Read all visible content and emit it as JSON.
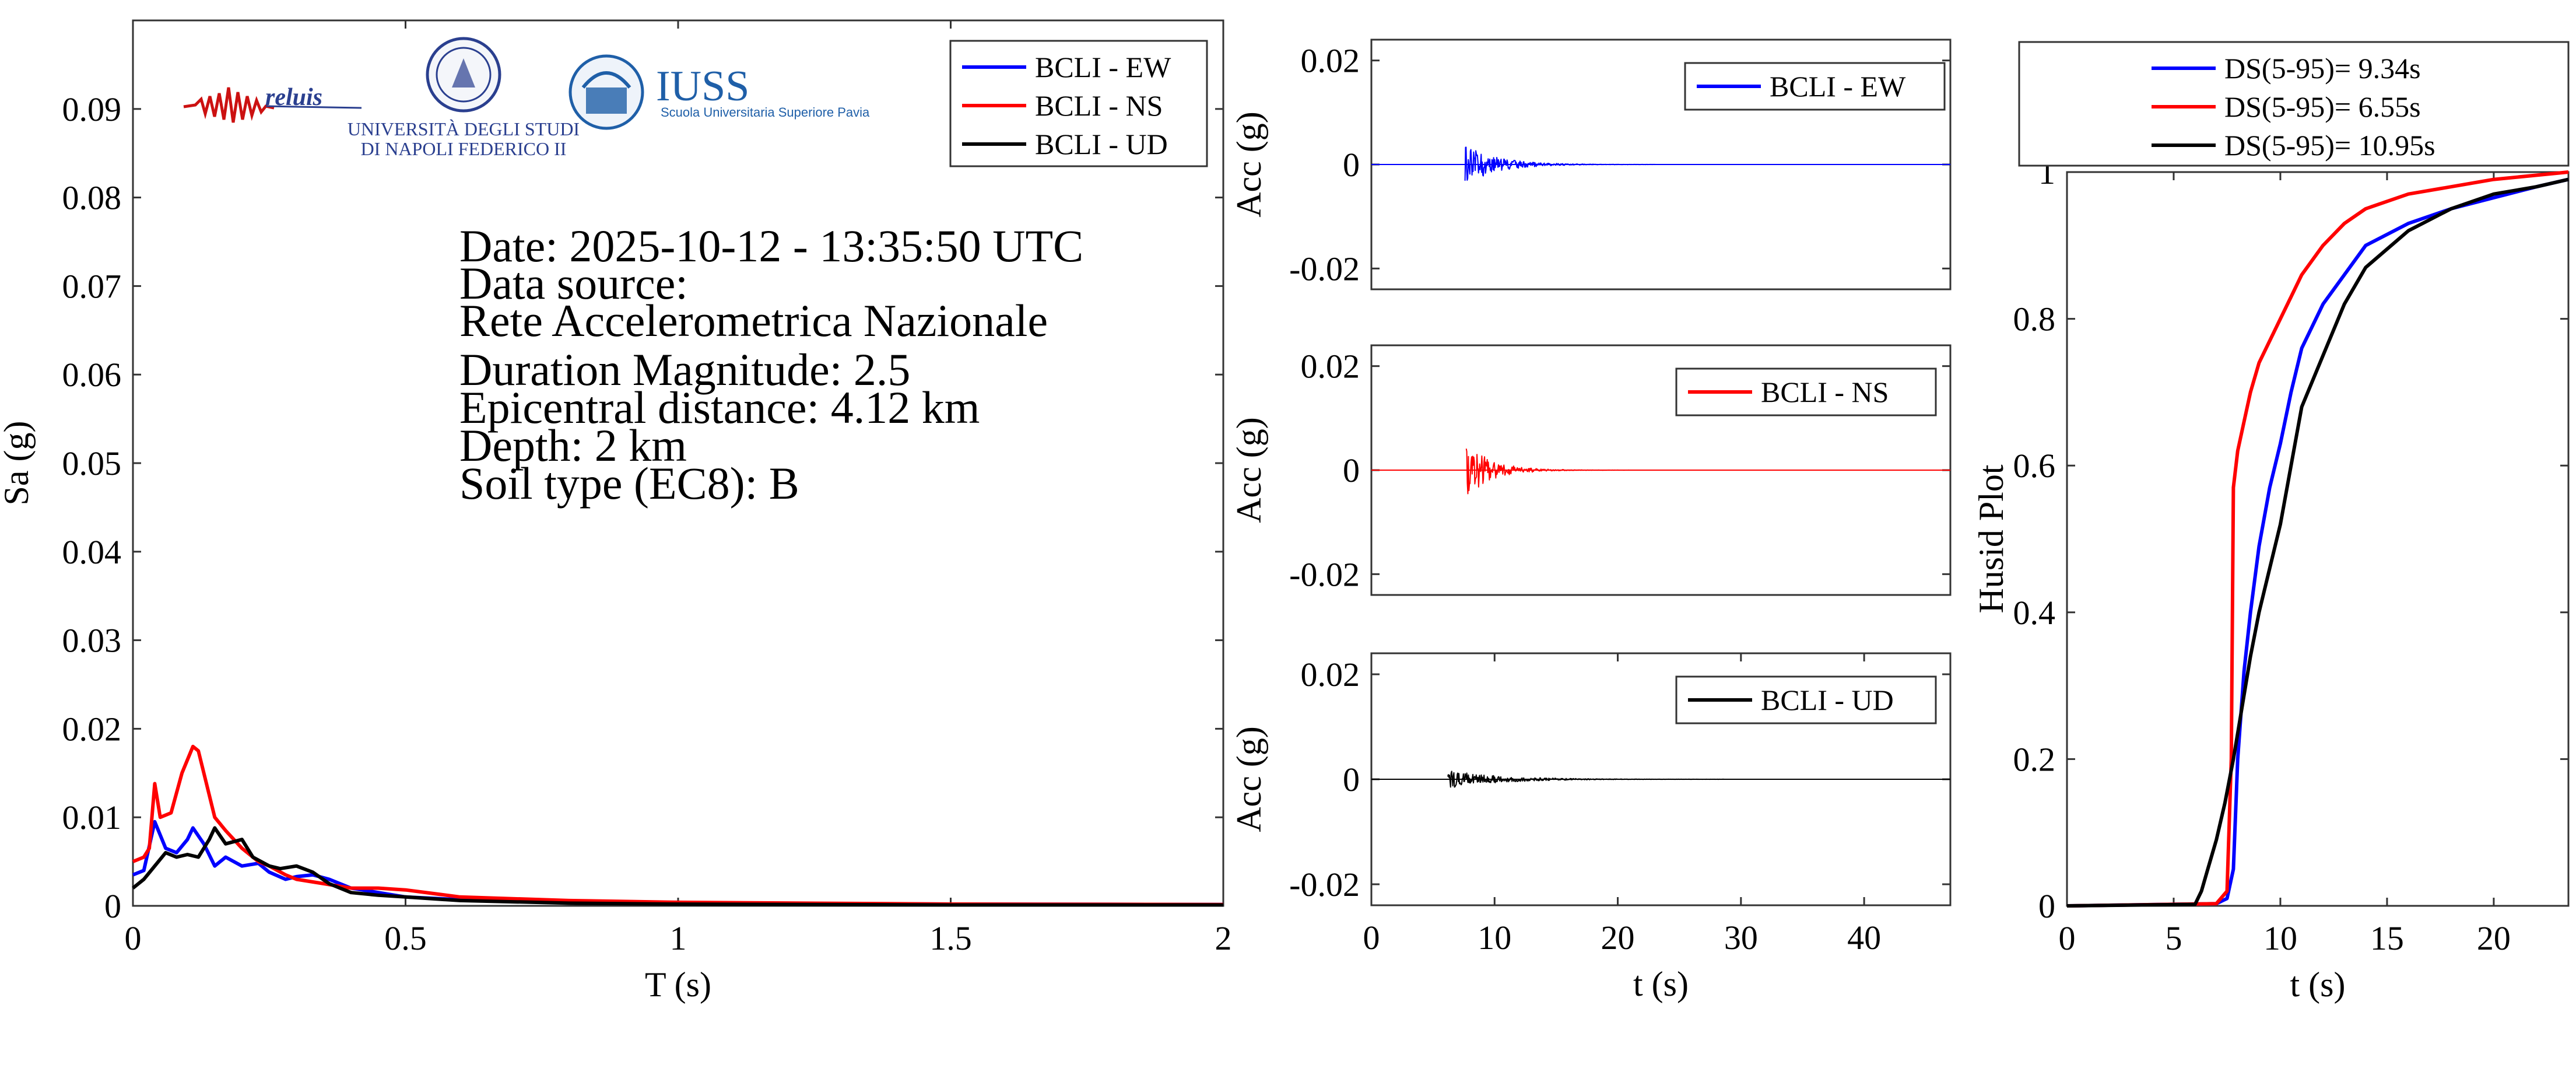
{
  "colors": {
    "ew": "#0000ff",
    "ns": "#ff0000",
    "ud": "#000000"
  },
  "logos": {
    "reluis": "reluis",
    "unina_line1": "UNIVERSITÀ DEGLI STUDI",
    "unina_line2": "DI NAPOLI FEDERICO II",
    "iuss": "IUSS",
    "iuss_sub": "Scuola Universitaria Superiore Pavia"
  },
  "info": {
    "date": "Date: 2025-10-12 - 13:35:50 UTC",
    "source_label": "Data source:",
    "source": "Rete Accelerometrica Nazionale",
    "magnitude": "Duration Magnitude: 2.5",
    "distance": "Epicentral distance: 4.12 km",
    "depth": "Depth: 2 km",
    "soil": "Soil type (EC8): B"
  },
  "chart_data": [
    {
      "id": "spectrum",
      "type": "line",
      "xlabel": "T (s)",
      "ylabel": "Sa (g)",
      "xlim": [
        0,
        2
      ],
      "ylim": [
        0,
        0.1
      ],
      "xticks": [
        0,
        0.5,
        1,
        1.5,
        2
      ],
      "xticklabels": [
        "0",
        "0.5",
        "1",
        "1.5",
        "2"
      ],
      "yticks": [
        0,
        0.01,
        0.02,
        0.03,
        0.04,
        0.05,
        0.06,
        0.07,
        0.08,
        0.09
      ],
      "yticklabels": [
        "0",
        "0.01",
        "0.02",
        "0.03",
        "0.04",
        "0.05",
        "0.06",
        "0.07",
        "0.08",
        "0.09"
      ],
      "legend": "top-right",
      "series": [
        {
          "name": "BCLI - EW",
          "color": "#0000ff",
          "x": [
            0,
            0.02,
            0.04,
            0.05,
            0.06,
            0.08,
            0.1,
            0.11,
            0.13,
            0.15,
            0.17,
            0.2,
            0.23,
            0.25,
            0.28,
            0.3,
            0.33,
            0.36,
            0.4,
            0.45,
            0.5,
            0.6,
            0.8,
            1.0,
            1.5,
            2.0
          ],
          "y": [
            0.0035,
            0.004,
            0.0095,
            0.008,
            0.0065,
            0.006,
            0.0075,
            0.0088,
            0.007,
            0.0045,
            0.0055,
            0.0045,
            0.0048,
            0.0038,
            0.003,
            0.0033,
            0.0035,
            0.003,
            0.002,
            0.0015,
            0.001,
            0.0007,
            0.0004,
            0.0003,
            0.0002,
            0.00015
          ]
        },
        {
          "name": "BCLI - NS",
          "color": "#ff0000",
          "x": [
            0,
            0.02,
            0.03,
            0.04,
            0.05,
            0.07,
            0.09,
            0.11,
            0.12,
            0.13,
            0.15,
            0.17,
            0.2,
            0.23,
            0.25,
            0.28,
            0.3,
            0.35,
            0.4,
            0.45,
            0.5,
            0.6,
            0.8,
            1.0,
            1.5,
            2.0
          ],
          "y": [
            0.005,
            0.0055,
            0.0065,
            0.0138,
            0.01,
            0.0105,
            0.015,
            0.018,
            0.0175,
            0.015,
            0.01,
            0.0085,
            0.0065,
            0.005,
            0.0045,
            0.0035,
            0.003,
            0.0025,
            0.002,
            0.002,
            0.0018,
            0.001,
            0.0006,
            0.0004,
            0.0002,
            0.00015
          ]
        },
        {
          "name": "BCLI - UD",
          "color": "#000000",
          "x": [
            0,
            0.02,
            0.04,
            0.06,
            0.08,
            0.1,
            0.12,
            0.14,
            0.15,
            0.17,
            0.2,
            0.22,
            0.25,
            0.27,
            0.3,
            0.33,
            0.36,
            0.4,
            0.45,
            0.5,
            0.6,
            0.8,
            1.0,
            1.5,
            2.0
          ],
          "y": [
            0.002,
            0.003,
            0.0045,
            0.006,
            0.0055,
            0.0058,
            0.0055,
            0.0075,
            0.0088,
            0.007,
            0.0075,
            0.0055,
            0.0045,
            0.0042,
            0.0045,
            0.0038,
            0.0025,
            0.0015,
            0.0012,
            0.001,
            0.0006,
            0.0003,
            0.0002,
            0.0001,
            0.0001
          ]
        }
      ]
    },
    {
      "id": "acc_ew",
      "type": "line",
      "xlabel": "",
      "ylabel": "Acc (g)",
      "xlim": [
        0,
        47
      ],
      "ylim": [
        -0.024,
        0.024
      ],
      "yticks": [
        -0.02,
        0,
        0.02
      ],
      "yticklabels": [
        "-0.02",
        "0",
        "0.02"
      ],
      "legend": "top-right",
      "series": [
        {
          "name": "BCLI - EW",
          "color": "#0000ff",
          "onset": 7.6,
          "peak": 0.004,
          "decay": 2.5,
          "end": 47
        }
      ]
    },
    {
      "id": "acc_ns",
      "type": "line",
      "xlabel": "",
      "ylabel": "Acc (g)",
      "xlim": [
        0,
        47
      ],
      "ylim": [
        -0.024,
        0.024
      ],
      "yticks": [
        -0.02,
        0,
        0.02
      ],
      "yticklabels": [
        "-0.02",
        "0",
        "0.02"
      ],
      "legend": "top-right",
      "series": [
        {
          "name": "BCLI - NS",
          "color": "#ff0000",
          "onset": 7.7,
          "peak": 0.0055,
          "decay": 2.0,
          "end": 47
        }
      ]
    },
    {
      "id": "acc_ud",
      "type": "line",
      "xlabel": "t (s)",
      "ylabel": "Acc (g)",
      "xlim": [
        0,
        47
      ],
      "ylim": [
        -0.024,
        0.024
      ],
      "xticks": [
        0,
        10,
        20,
        30,
        40
      ],
      "xticklabels": [
        "0",
        "10",
        "20",
        "30",
        "40"
      ],
      "yticks": [
        -0.02,
        0,
        0.02
      ],
      "yticklabels": [
        "-0.02",
        "0",
        "0.02"
      ],
      "legend": "top-right",
      "series": [
        {
          "name": "BCLI - UD",
          "color": "#000000",
          "onset": 6.2,
          "peak": 0.0018,
          "decay": 4.0,
          "end": 47
        }
      ]
    },
    {
      "id": "husid",
      "type": "line",
      "xlabel": "t (s)",
      "ylabel": "Husid Plot",
      "xlim": [
        0,
        23.5
      ],
      "ylim": [
        0,
        1
      ],
      "xticks": [
        0,
        5,
        10,
        15,
        20
      ],
      "xticklabels": [
        "0",
        "5",
        "10",
        "15",
        "20"
      ],
      "yticks": [
        0,
        0.2,
        0.4,
        0.6,
        0.8,
        1
      ],
      "yticklabels": [
        "0",
        "0.2",
        "0.4",
        "0.6",
        "0.8",
        "1"
      ],
      "legend": "top (outside)",
      "series": [
        {
          "name": "DS(5-95)= 9.34s",
          "color": "#0000ff",
          "x": [
            0,
            7.0,
            7.5,
            7.8,
            8.0,
            8.3,
            8.6,
            9.0,
            9.5,
            10.0,
            10.5,
            11.0,
            12.0,
            13.0,
            14.0,
            16.0,
            18.0,
            20.0,
            22.0,
            23.5
          ],
          "y": [
            0,
            0.003,
            0.01,
            0.05,
            0.2,
            0.32,
            0.4,
            0.49,
            0.57,
            0.63,
            0.7,
            0.76,
            0.82,
            0.86,
            0.9,
            0.93,
            0.95,
            0.965,
            0.98,
            0.99
          ]
        },
        {
          "name": "DS(5-95)= 6.55s",
          "color": "#ff0000",
          "x": [
            0,
            7.0,
            7.5,
            7.7,
            7.8,
            8.0,
            8.3,
            8.6,
            9.0,
            9.5,
            10.0,
            10.5,
            11.0,
            12.0,
            13.0,
            14.0,
            16.0,
            18.0,
            20.0,
            23.5
          ],
          "y": [
            0,
            0.003,
            0.02,
            0.2,
            0.57,
            0.62,
            0.66,
            0.7,
            0.74,
            0.77,
            0.8,
            0.83,
            0.86,
            0.9,
            0.93,
            0.95,
            0.97,
            0.98,
            0.99,
            1.0
          ]
        },
        {
          "name": "DS(5-95)= 10.95s",
          "color": "#000000",
          "x": [
            0,
            6.0,
            6.3,
            6.6,
            7.0,
            7.4,
            7.8,
            8.2,
            8.6,
            9.0,
            9.5,
            10.0,
            10.5,
            11.0,
            12.0,
            13.0,
            14.0,
            16.0,
            18.0,
            20.0,
            22.0,
            23.5
          ],
          "y": [
            0,
            0.002,
            0.02,
            0.05,
            0.09,
            0.14,
            0.2,
            0.27,
            0.34,
            0.4,
            0.46,
            0.52,
            0.6,
            0.68,
            0.75,
            0.82,
            0.87,
            0.92,
            0.95,
            0.97,
            0.98,
            0.99
          ]
        }
      ]
    }
  ]
}
